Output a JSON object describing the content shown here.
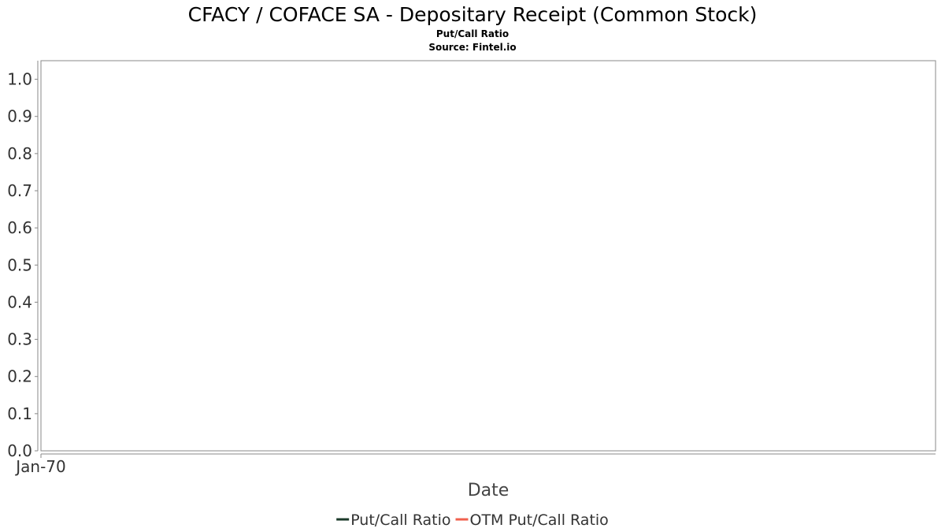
{
  "chart_data": {
    "type": "line",
    "title": "CFACY / COFACE SA - Depositary Receipt (Common Stock)",
    "subtitle": "Put/Call Ratio",
    "source": "Source: Fintel.io",
    "xlabel": "Date",
    "ylabel": "",
    "ylim": [
      0,
      1.05
    ],
    "y_ticks": [
      "0.0",
      "0.1",
      "0.2",
      "0.3",
      "0.4",
      "0.5",
      "0.6",
      "0.7",
      "0.8",
      "0.9",
      "1.0"
    ],
    "x_ticks": [
      "Jan-70"
    ],
    "grid": true,
    "legend_position": "bottom",
    "series": [
      {
        "name": "Put/Call Ratio",
        "color": "#1b3a2a",
        "values": []
      },
      {
        "name": "OTM Put/Call Ratio",
        "color": "#f0604d",
        "values": []
      }
    ]
  }
}
